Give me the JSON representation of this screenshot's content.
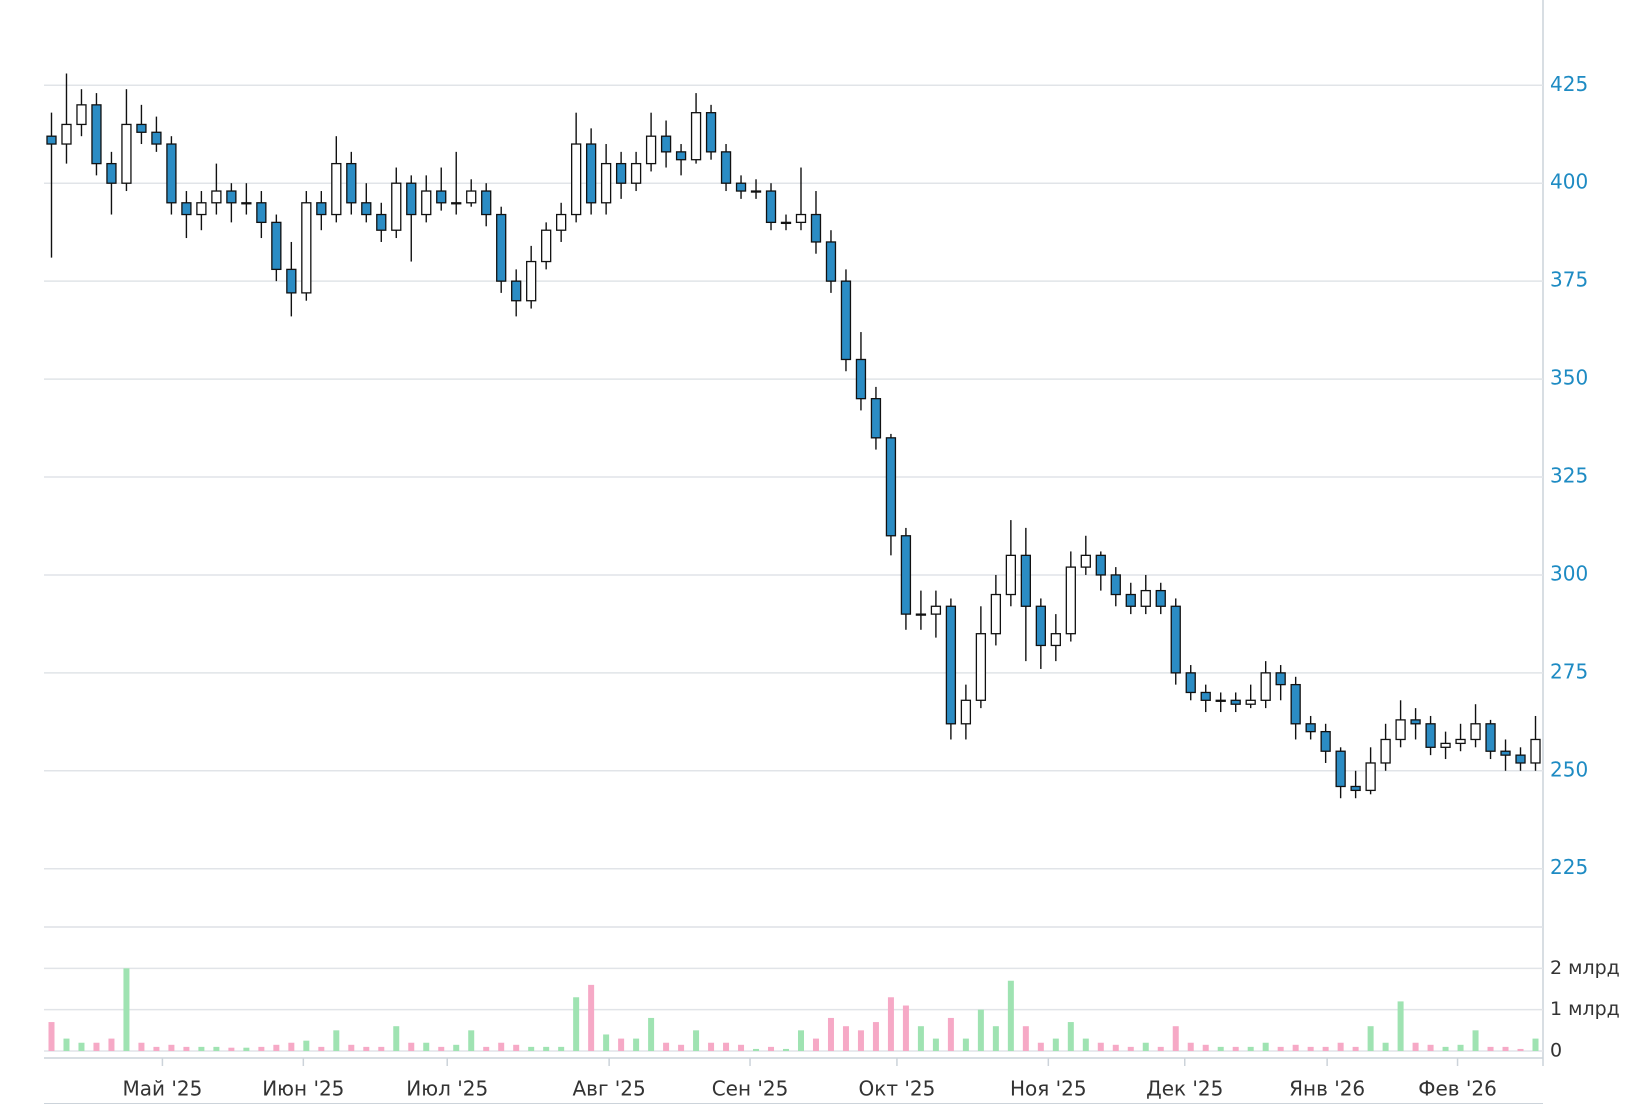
{
  "chart_data": {
    "type": "candlestick",
    "xlim": [
      0,
      100
    ],
    "xticks": [
      {
        "value": 7.9,
        "label": "Май '25"
      },
      {
        "value": 17.3,
        "label": "Июн '25"
      },
      {
        "value": 26.9,
        "label": "Июл '25"
      },
      {
        "value": 37.7,
        "label": "Авг '25"
      },
      {
        "value": 47.1,
        "label": "Сен '25"
      },
      {
        "value": 56.9,
        "label": "Окт '25"
      },
      {
        "value": 67.0,
        "label": "Ноя '25"
      },
      {
        "value": 76.1,
        "label": "Дек '25"
      },
      {
        "value": 85.6,
        "label": "Янв '26"
      },
      {
        "value": 94.3,
        "label": "Фев '26"
      }
    ],
    "ylim": [
      216,
      446
    ],
    "yticks": [
      225,
      250,
      275,
      300,
      325,
      350,
      375,
      400,
      425
    ],
    "y2lim": [
      0,
      3
    ],
    "y2ticks": [
      0,
      {
        "value": 1,
        "label": "1 млрд"
      },
      {
        "value": 2,
        "label": "2 млрд"
      }
    ],
    "grid": true,
    "up_color": "#ffffff",
    "down_color": "#2b8cc4",
    "volume_up_color": "#9fe3b2",
    "volume_down_color": "#f6a9c6",
    "open": [
      412,
      410,
      415,
      420,
      405,
      400,
      415,
      413,
      410,
      395,
      392,
      395,
      398,
      395,
      395,
      390,
      378,
      372,
      395,
      392,
      405,
      395,
      392,
      388,
      400,
      392,
      398,
      395,
      395,
      398,
      392,
      375,
      370,
      380,
      388,
      392,
      410,
      395,
      405,
      400,
      405,
      412,
      408,
      406,
      418,
      408,
      400,
      398,
      398,
      390,
      390,
      392,
      385,
      375,
      355,
      345,
      335,
      310,
      290,
      290,
      292,
      262,
      268,
      285,
      295,
      305,
      292,
      282,
      285,
      302,
      305,
      300,
      295,
      292,
      296,
      292,
      275,
      270,
      268,
      268,
      267,
      268,
      275,
      272,
      262,
      260,
      255,
      246,
      245,
      252,
      258,
      263,
      262,
      256,
      257,
      258,
      262,
      255,
      254,
      252
    ],
    "high": [
      418,
      428,
      424,
      423,
      408,
      424,
      420,
      417,
      412,
      398,
      398,
      405,
      400,
      400,
      398,
      392,
      385,
      398,
      398,
      412,
      408,
      400,
      395,
      404,
      402,
      402,
      404,
      408,
      401,
      400,
      394,
      378,
      384,
      390,
      395,
      418,
      414,
      410,
      408,
      408,
      418,
      416,
      410,
      423,
      420,
      410,
      402,
      401,
      400,
      392,
      404,
      398,
      388,
      378,
      362,
      348,
      336,
      312,
      296,
      296,
      294,
      272,
      292,
      300,
      314,
      312,
      294,
      290,
      306,
      310,
      306,
      302,
      298,
      300,
      298,
      294,
      277,
      272,
      270,
      270,
      272,
      278,
      277,
      274,
      264,
      262,
      256,
      250,
      256,
      262,
      268,
      266,
      264,
      260,
      262,
      267,
      263,
      258,
      256,
      264
    ],
    "low": [
      381,
      405,
      412,
      402,
      392,
      398,
      410,
      408,
      392,
      386,
      388,
      392,
      390,
      392,
      386,
      375,
      366,
      370,
      388,
      390,
      392,
      390,
      385,
      386,
      380,
      390,
      393,
      392,
      394,
      389,
      372,
      366,
      368,
      378,
      385,
      390,
      392,
      392,
      396,
      398,
      403,
      404,
      402,
      405,
      406,
      398,
      396,
      396,
      388,
      388,
      388,
      382,
      372,
      352,
      342,
      332,
      305,
      286,
      286,
      284,
      258,
      258,
      266,
      282,
      292,
      278,
      276,
      278,
      283,
      300,
      296,
      292,
      290,
      290,
      290,
      272,
      268,
      265,
      265,
      265,
      266,
      266,
      268,
      258,
      258,
      252,
      243,
      243,
      244,
      250,
      256,
      258,
      254,
      253,
      255,
      256,
      253,
      250,
      250,
      250
    ],
    "close": [
      410,
      415,
      420,
      405,
      400,
      415,
      413,
      410,
      395,
      392,
      395,
      398,
      395,
      395,
      390,
      378,
      372,
      395,
      392,
      405,
      395,
      392,
      388,
      400,
      392,
      398,
      395,
      395,
      398,
      392,
      375,
      370,
      380,
      388,
      392,
      410,
      395,
      405,
      400,
      405,
      412,
      408,
      406,
      418,
      408,
      400,
      398,
      398,
      390,
      390,
      392,
      385,
      375,
      355,
      345,
      335,
      310,
      290,
      290,
      292,
      262,
      268,
      285,
      295,
      305,
      292,
      282,
      285,
      302,
      305,
      300,
      295,
      292,
      296,
      292,
      275,
      270,
      268,
      268,
      267,
      268,
      275,
      272,
      262,
      260,
      255,
      246,
      245,
      252,
      258,
      263,
      262,
      256,
      257,
      258,
      262,
      255,
      254,
      252,
      258
    ],
    "volume": [
      0.7,
      0.3,
      0.2,
      0.2,
      0.3,
      2.0,
      0.2,
      0.1,
      0.15,
      0.1,
      0.1,
      0.1,
      0.08,
      0.08,
      0.1,
      0.15,
      0.2,
      0.25,
      0.1,
      0.5,
      0.15,
      0.1,
      0.1,
      0.6,
      0.2,
      0.2,
      0.1,
      0.15,
      0.5,
      0.1,
      0.2,
      0.15,
      0.1,
      0.1,
      0.1,
      1.3,
      1.6,
      0.4,
      0.3,
      0.3,
      0.8,
      0.2,
      0.15,
      0.5,
      0.2,
      0.2,
      0.15,
      0.05,
      0.1,
      0.05,
      0.5,
      0.3,
      0.8,
      0.6,
      0.5,
      0.7,
      1.3,
      1.1,
      0.6,
      0.3,
      0.8,
      0.3,
      1.0,
      0.6,
      1.7,
      0.6,
      0.2,
      0.3,
      0.7,
      0.3,
      0.2,
      0.15,
      0.1,
      0.2,
      0.1,
      0.6,
      0.2,
      0.15,
      0.1,
      0.1,
      0.1,
      0.2,
      0.1,
      0.15,
      0.1,
      0.1,
      0.2,
      0.1,
      0.6,
      0.2,
      1.2,
      0.2,
      0.15,
      0.1,
      0.15,
      0.5,
      0.1,
      0.1,
      0.05,
      0.3
    ]
  }
}
